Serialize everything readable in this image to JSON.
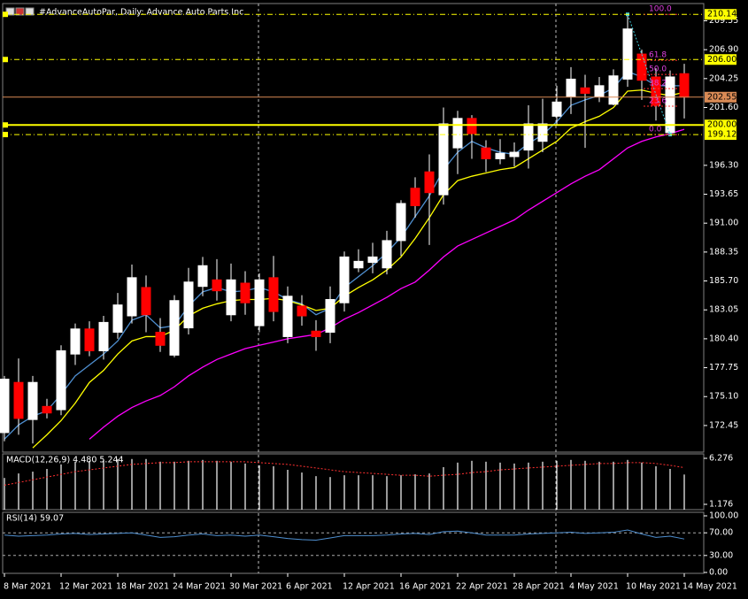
{
  "chart_data": [
    {
      "type": "candlestick",
      "title": "#AdvanceAutoPar, Daily:  Advance Auto Parts Inc",
      "categories": [
        "8 Mar 2021",
        null,
        null,
        null,
        "12 Mar 2021",
        null,
        null,
        null,
        "18 Mar 2021",
        null,
        null,
        null,
        "24 Mar 2021",
        null,
        null,
        null,
        "30 Mar 2021",
        null,
        null,
        null,
        "6 Apr 2021",
        null,
        null,
        null,
        "12 Apr 2021",
        null,
        null,
        null,
        "16 Apr 2021",
        null,
        null,
        null,
        "22 Apr 2021",
        null,
        null,
        null,
        "28 Apr 2021",
        null,
        null,
        null,
        "4 May 2021",
        null,
        null,
        null,
        "10 May 2021",
        null,
        null,
        null,
        "14 May 2021"
      ],
      "open": [
        171.8,
        176.4,
        173.0,
        174.2,
        173.9,
        179.0,
        181.3,
        179.3,
        181.0,
        182.5,
        185.1,
        181.0,
        178.9,
        181.4,
        185.2,
        185.8,
        182.6,
        185.5,
        181.6,
        186.0,
        180.6,
        183.4,
        181.1,
        181.0,
        183.7,
        186.9,
        187.4,
        186.9,
        189.4,
        194.2,
        195.7,
        193.6,
        197.9,
        200.6,
        197.9,
        196.9,
        197.1,
        197.7,
        198.5,
        200.8,
        202.6,
        203.4,
        202.6,
        201.9,
        204.2,
        206.5,
        204.4,
        199.3,
        204.7
      ],
      "high": [
        177.0,
        178.6,
        177.0,
        174.9,
        179.8,
        181.8,
        182.0,
        182.5,
        184.6,
        187.2,
        186.2,
        182.3,
        184.4,
        186.9,
        187.9,
        187.7,
        187.3,
        186.6,
        186.4,
        188.0,
        185.2,
        184.4,
        182.1,
        185.2,
        188.4,
        188.6,
        189.2,
        190.3,
        193.1,
        195.2,
        197.3,
        201.6,
        201.3,
        200.9,
        198.6,
        198.7,
        198.4,
        201.8,
        202.4,
        203.6,
        205.3,
        204.6,
        204.4,
        205.1,
        210.14,
        206.9,
        205.2,
        205.0,
        205.6
      ],
      "low": [
        171.0,
        171.6,
        170.8,
        173.1,
        173.4,
        178.0,
        178.8,
        178.5,
        180.4,
        181.8,
        181.0,
        179.2,
        178.7,
        180.8,
        184.3,
        183.9,
        182.0,
        182.6,
        181.0,
        182.0,
        180.0,
        181.6,
        179.3,
        180.0,
        182.9,
        186.5,
        186.4,
        186.3,
        188.0,
        191.5,
        189.0,
        192.7,
        195.5,
        196.9,
        195.7,
        196.4,
        196.2,
        196.0,
        197.5,
        200.0,
        201.0,
        197.9,
        202.1,
        201.8,
        203.5,
        202.3,
        200.4,
        199.12,
        200.6
      ],
      "close": [
        176.7,
        173.1,
        176.4,
        173.6,
        179.3,
        181.3,
        179.3,
        181.9,
        183.5,
        186.0,
        182.6,
        179.8,
        183.9,
        185.6,
        187.1,
        184.8,
        185.8,
        183.7,
        185.8,
        182.9,
        184.3,
        182.5,
        180.6,
        184.0,
        187.9,
        187.5,
        187.9,
        189.4,
        192.8,
        192.6,
        193.8,
        200.1,
        200.6,
        199.2,
        196.9,
        197.4,
        197.5,
        200.1,
        200.1,
        202.1,
        204.2,
        202.9,
        203.6,
        204.5,
        208.8,
        204.1,
        201.8,
        204.4,
        202.55
      ],
      "up_color": "#ffffff",
      "down_color": "#ff0000",
      "lines": [
        {
          "color": "#4f8fd0",
          "values": [
            171.2,
            172.5,
            173.3,
            173.8,
            175.3,
            177.0,
            178.0,
            179.0,
            180.2,
            182.1,
            182.6,
            181.4,
            181.6,
            183.4,
            184.7,
            185.1,
            184.7,
            184.8,
            185.1,
            184.7,
            184.0,
            183.6,
            182.6,
            183.2,
            185.1,
            186.1,
            187.1,
            188.3,
            189.7,
            191.6,
            193.5,
            195.9,
            197.5,
            198.5,
            197.9,
            197.5,
            197.3,
            198.3,
            199.1,
            200.3,
            201.8,
            202.3,
            202.7,
            203.4,
            204.9,
            204.4,
            203.6,
            203.6,
            203.6
          ]
        },
        {
          "color": "#ffff00",
          "values": [
            null,
            null,
            170.4,
            171.6,
            172.9,
            174.5,
            176.4,
            177.5,
            179.0,
            180.2,
            180.6,
            180.6,
            181.2,
            182.5,
            183.2,
            183.6,
            183.9,
            184.0,
            184.0,
            184.1,
            183.9,
            183.5,
            183.0,
            183.2,
            184.3,
            185.1,
            185.8,
            186.7,
            187.9,
            189.6,
            191.5,
            193.6,
            194.9,
            195.3,
            195.6,
            195.9,
            196.1,
            196.9,
            197.7,
            198.5,
            199.7,
            200.3,
            200.8,
            201.6,
            203.1,
            203.2,
            202.9,
            202.7,
            203.0
          ]
        },
        {
          "color": "#ff00ff",
          "values": [
            null,
            null,
            null,
            null,
            null,
            null,
            171.2,
            172.3,
            173.3,
            174.1,
            174.7,
            175.2,
            176.0,
            177.0,
            177.8,
            178.5,
            179.0,
            179.5,
            179.8,
            180.1,
            180.4,
            180.6,
            180.8,
            181.4,
            182.2,
            182.8,
            183.5,
            184.2,
            185.0,
            185.6,
            186.7,
            187.9,
            188.9,
            189.5,
            190.1,
            190.7,
            191.3,
            192.2,
            193.0,
            193.8,
            194.6,
            195.3,
            195.9,
            196.9,
            197.9,
            198.5,
            198.9,
            199.2,
            199.6
          ]
        }
      ],
      "ylim": [
        170.01,
        211.13
      ],
      "yticks": [
        172.45,
        {
          "value": 175.1,
          "label": "175.10"
        },
        177.75,
        {
          "value": 180.4,
          "label": "180.40"
        },
        183.05,
        {
          "value": 185.7,
          "label": "185.70"
        },
        188.35,
        {
          "value": 191,
          "label": "191.00"
        },
        193.65,
        {
          "value": 196.3,
          "label": "196.30"
        },
        {
          "value": 201.6,
          "label": "201.60"
        },
        204.25,
        {
          "value": 206.9,
          "label": "206.90"
        },
        209.55
      ],
      "hlines": [
        {
          "value": 210.14,
          "label": "210.14",
          "style": "dash-dot",
          "color": "#ffff00",
          "width": 1
        },
        {
          "value": 206,
          "label": "206.00",
          "style": "dash-dot",
          "color": "#ffff00",
          "width": 1
        },
        {
          "value": 202.55,
          "label": "202.55",
          "style": "solid",
          "color": "#d98a55",
          "width": 1
        },
        {
          "value": 200,
          "label": "200.00",
          "style": "solid",
          "color": "#ffff00",
          "width": 2
        },
        {
          "value": 199.12,
          "label": "199.12",
          "style": "dash-dot",
          "color": "#ffff00",
          "width": 1
        }
      ],
      "fib": {
        "high": 210.14,
        "low": 199.12,
        "color": "#ff3030",
        "label_color": "#e040e0",
        "levels": [
          {
            "value": 0,
            "label": "0.0"
          },
          {
            "value": 23.6,
            "label": "23.6"
          },
          {
            "value": 38.2,
            "label": "38.2"
          },
          {
            "value": 50,
            "label": "50.0"
          },
          {
            "value": 61.8,
            "label": "61.8"
          },
          {
            "value": 100,
            "label": "100.0"
          }
        ]
      }
    },
    {
      "type": "macd",
      "title": "MACD(12,26,9) 4.480 5.244",
      "color": "#ffffff",
      "signal_color": "#ff3030",
      "values": [
        4.1,
        4.6,
        4.8,
        5.1,
        5.6,
        5.9,
        6.0,
        6.1,
        6.2,
        6.2,
        6.2,
        5.9,
        5.9,
        6.0,
        6.1,
        6.0,
        5.9,
        5.7,
        5.5,
        5.4,
        5.0,
        4.7,
        4.3,
        4.2,
        4.4,
        4.4,
        4.4,
        4.3,
        4.4,
        4.5,
        4.6,
        5.3,
        5.8,
        6.0,
        5.9,
        5.8,
        5.7,
        5.8,
        5.9,
        6.0,
        6.1,
        6.0,
        5.9,
        5.9,
        6.1,
        5.8,
        5.4,
        5.1,
        4.48
      ],
      "signal": [
        3.3,
        3.6,
        3.9,
        4.2,
        4.5,
        4.8,
        5.0,
        5.2,
        5.4,
        5.6,
        5.7,
        5.8,
        5.8,
        5.9,
        5.9,
        5.9,
        5.9,
        5.9,
        5.8,
        5.7,
        5.6,
        5.4,
        5.2,
        5.0,
        4.8,
        4.7,
        4.6,
        4.5,
        4.4,
        4.4,
        4.3,
        4.4,
        4.5,
        4.7,
        4.8,
        5.0,
        5.1,
        5.2,
        5.3,
        5.4,
        5.5,
        5.6,
        5.7,
        5.7,
        5.8,
        5.8,
        5.7,
        5.5,
        5.244
      ],
      "ylim": [
        0.588,
        6.766
      ],
      "yticks": [
        6.276,
        1.176
      ]
    },
    {
      "type": "rsi",
      "title": "RSI(14) 59.07",
      "color": "#4f8fd0",
      "values": [
        66,
        64,
        65,
        66,
        68,
        69,
        67,
        68,
        69,
        70,
        66,
        62,
        63,
        66,
        68,
        65,
        66,
        64,
        66,
        63,
        60,
        58,
        57,
        61,
        65,
        65,
        65,
        66,
        68,
        69,
        67,
        72,
        73,
        70,
        66,
        66,
        66,
        68,
        69,
        70,
        71,
        69,
        70,
        71,
        75,
        68,
        62,
        64,
        59.07
      ],
      "ylim": [
        -1.56,
        106.25
      ],
      "yticks": [
        {
          "value": 100,
          "label": "100.00"
        },
        {
          "value": 70,
          "label": "70.00"
        },
        {
          "value": 30,
          "label": "30.00"
        },
        {
          "value": 0,
          "label": "0.00"
        }
      ],
      "levels": [
        70,
        30
      ]
    }
  ]
}
